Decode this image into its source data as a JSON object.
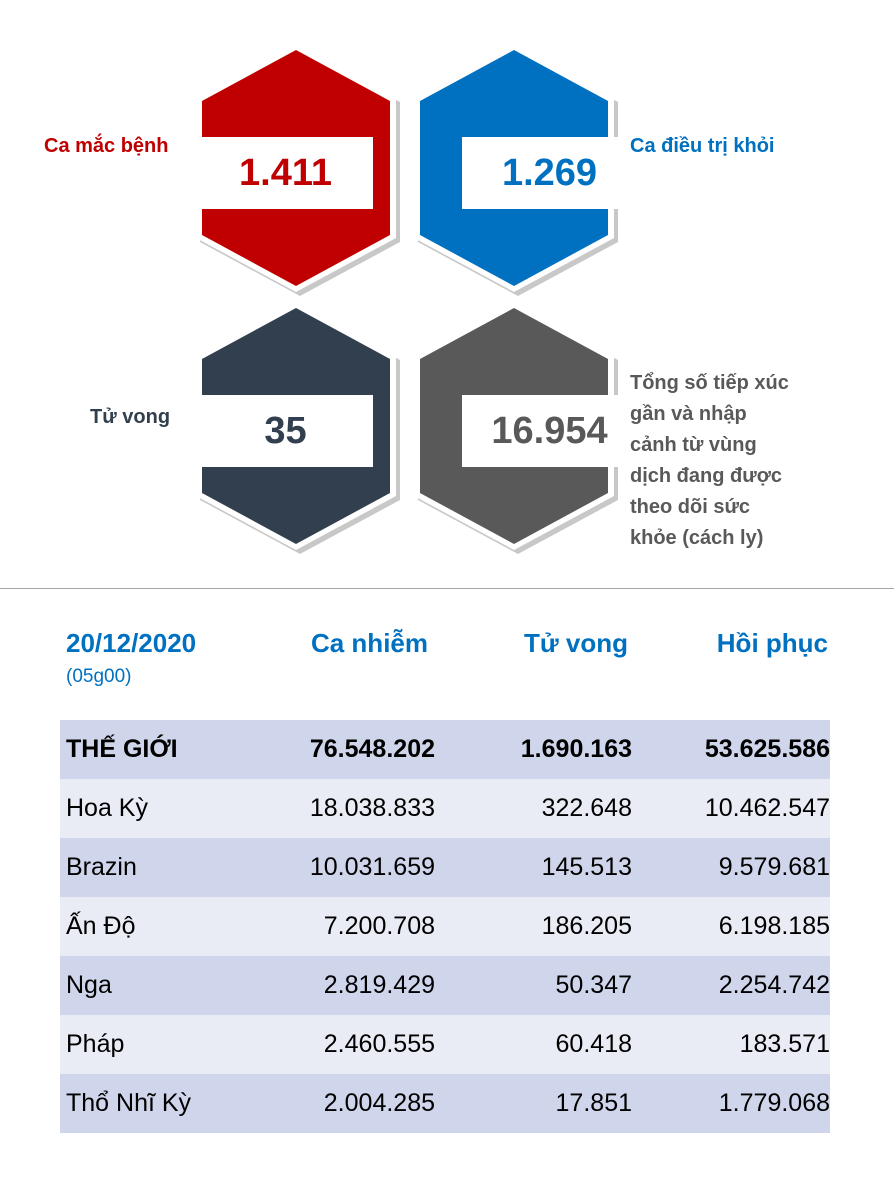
{
  "stats": {
    "cases": {
      "label": "Ca mắc bệnh",
      "value": "1.411",
      "color": "#c00000"
    },
    "recovered": {
      "label": "Ca điều trị khỏi",
      "value": "1.269",
      "color": "#0070c0"
    },
    "deaths": {
      "label": "Tử vong",
      "value": "35",
      "color": "#323f4f"
    },
    "monitored": {
      "label_lines": [
        "Tổng số tiếp xúc",
        "gần và nhập",
        "cảnh từ vùng",
        "dịch đang được",
        "theo dõi sức",
        "khỏe (cách ly)"
      ],
      "value": "16.954",
      "color": "#595959"
    }
  },
  "table": {
    "date": "20/12/2020",
    "time": "(05g00)",
    "headers": [
      "Ca nhiễm",
      "Tử vong",
      "Hồi phục"
    ],
    "rows": [
      {
        "name": "THẾ GIỚI",
        "cases": "76.548.202",
        "deaths": "1.690.163",
        "recovered": "53.625.586"
      },
      {
        "name": "Hoa Kỳ",
        "cases": "18.038.833",
        "deaths": "322.648",
        "recovered": "10.462.547"
      },
      {
        "name": "Brazin",
        "cases": "10.031.659",
        "deaths": "145.513",
        "recovered": "9.579.681"
      },
      {
        "name": "Ấn Độ",
        "cases": "7.200.708",
        "deaths": "186.205",
        "recovered": "6.198.185"
      },
      {
        "name": "Nga",
        "cases": "2.819.429",
        "deaths": "50.347",
        "recovered": "2.254.742"
      },
      {
        "name": "Pháp",
        "cases": "2.460.555",
        "deaths": "60.418",
        "recovered": "183.571"
      },
      {
        "name": "Thổ Nhĩ Kỳ",
        "cases": "2.004.285",
        "deaths": "17.851",
        "recovered": "1.779.068"
      }
    ]
  }
}
